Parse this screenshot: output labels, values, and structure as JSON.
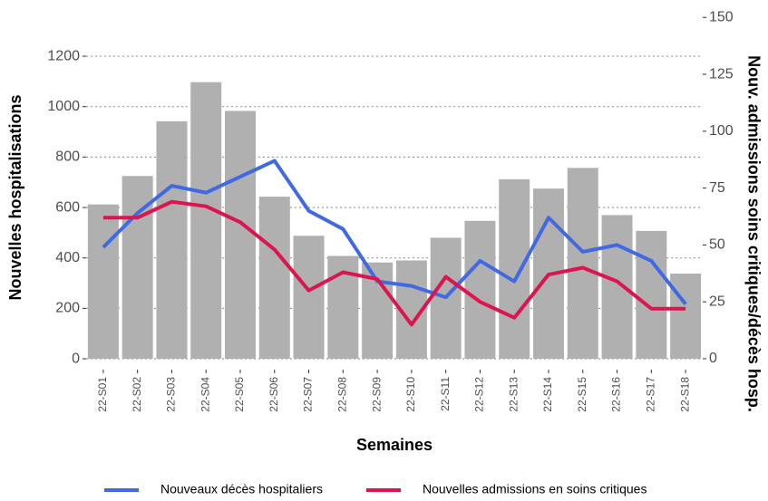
{
  "chart_data": {
    "type": "combo",
    "x_label": "Semaines",
    "y_label": "Nouvelles hospitalisations",
    "y2_label": "Nouv. admissions soins critiques/décès hosp.",
    "categories": [
      "22-S01",
      "22-S02",
      "22-S03",
      "22-S04",
      "22-S05",
      "22-S06",
      "22-S07",
      "22-S08",
      "22-S09",
      "22-S10",
      "22-S11",
      "22-S12",
      "22-S13",
      "22-S14",
      "22-S15",
      "22-S16",
      "22-S17",
      "22-S18"
    ],
    "series": [
      {
        "type": "bar",
        "color": "#b0b0b0",
        "values": [
          612,
          725,
          942,
          1097,
          983,
          643,
          488,
          408,
          382,
          390,
          480,
          547,
          712,
          675,
          757,
          570,
          507,
          338
        ]
      },
      {
        "type": "line",
        "axis": "y2",
        "name": "Nouveaux décès hospitaliers",
        "color": "#4169e1",
        "values": [
          49,
          64,
          76,
          73,
          80,
          87,
          65,
          57,
          34,
          32,
          27,
          43,
          34,
          62,
          47,
          50,
          43,
          24
        ]
      },
      {
        "type": "line",
        "axis": "y2",
        "name": "Nouvelles admissions en soins critiques",
        "color": "#dc1450",
        "values": [
          62,
          62,
          69,
          67,
          60,
          48,
          30,
          38,
          35,
          15,
          36,
          25,
          18,
          37,
          40,
          34,
          22,
          22
        ]
      }
    ],
    "ylim": [
      -43,
      1369
    ],
    "yticks": [
      0,
      200,
      400,
      600,
      800,
      1000,
      1200
    ],
    "y2lim": [
      -4.8,
      151.7
    ],
    "y2ticks": [
      0,
      25,
      50,
      75,
      100,
      125,
      150
    ],
    "grid": true,
    "legend": "bottom"
  }
}
